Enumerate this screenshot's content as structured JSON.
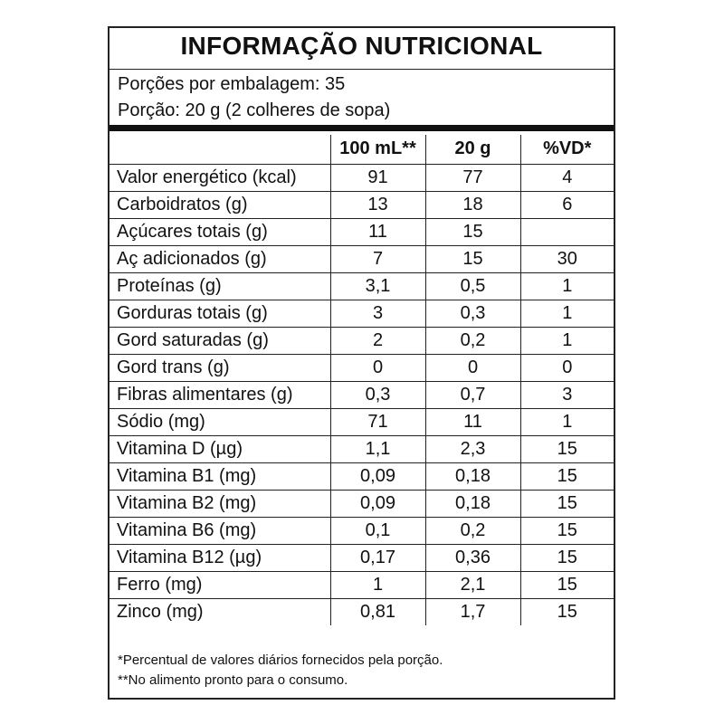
{
  "label": {
    "title": "INFORMAÇÃO NUTRICIONAL",
    "servings_per_package": "Porções por embalagem: 35",
    "serving_size": "Porção: 20 g (2 colheres de sopa)"
  },
  "table": {
    "headers": [
      "",
      "100 mL**",
      "20 g",
      "%VD*"
    ],
    "rows": [
      {
        "nutrient": "Valor energético (kcal)",
        "per_100ml": "91",
        "per_portion": "77",
        "vd": "4",
        "indent": 0
      },
      {
        "nutrient": "Carboidratos (g)",
        "per_100ml": "13",
        "per_portion": "18",
        "vd": "6",
        "indent": 0
      },
      {
        "nutrient": "Açúcares totais (g)",
        "per_100ml": "11",
        "per_portion": "15",
        "vd": "",
        "indent": 1
      },
      {
        "nutrient": "Aç adicionados (g)",
        "per_100ml": "7",
        "per_portion": "15",
        "vd": "30",
        "indent": 2
      },
      {
        "nutrient": "Proteínas (g)",
        "per_100ml": "3,1",
        "per_portion": "0,5",
        "vd": "1",
        "indent": 0
      },
      {
        "nutrient": "Gorduras totais (g)",
        "per_100ml": "3",
        "per_portion": "0,3",
        "vd": "1",
        "indent": 0
      },
      {
        "nutrient": "Gord saturadas (g)",
        "per_100ml": "2",
        "per_portion": "0,2",
        "vd": "1",
        "indent": 1
      },
      {
        "nutrient": "Gord trans (g)",
        "per_100ml": "0",
        "per_portion": "0",
        "vd": "0",
        "indent": 1
      },
      {
        "nutrient": "Fibras alimentares (g)",
        "per_100ml": "0,3",
        "per_portion": "0,7",
        "vd": "3",
        "indent": 0
      },
      {
        "nutrient": "Sódio (mg)",
        "per_100ml": "71",
        "per_portion": "11",
        "vd": "1",
        "indent": 0
      },
      {
        "nutrient": "Vitamina D (µg)",
        "per_100ml": "1,1",
        "per_portion": "2,3",
        "vd": "15",
        "indent": 0
      },
      {
        "nutrient": "Vitamina B1 (mg)",
        "per_100ml": "0,09",
        "per_portion": "0,18",
        "vd": "15",
        "indent": 0
      },
      {
        "nutrient": "Vitamina B2 (mg)",
        "per_100ml": "0,09",
        "per_portion": "0,18",
        "vd": "15",
        "indent": 0
      },
      {
        "nutrient": "Vitamina B6 (mg)",
        "per_100ml": "0,1",
        "per_portion": "0,2",
        "vd": "15",
        "indent": 0
      },
      {
        "nutrient": "Vitamina B12 (µg)",
        "per_100ml": "0,17",
        "per_portion": "0,36",
        "vd": "15",
        "indent": 0
      },
      {
        "nutrient": "Ferro (mg)",
        "per_100ml": "1",
        "per_portion": "2,1",
        "vd": "15",
        "indent": 0
      },
      {
        "nutrient": "Zinco (mg)",
        "per_100ml": "0,81",
        "per_portion": "1,7",
        "vd": "15",
        "indent": 0
      }
    ]
  },
  "footnotes": [
    "*Percentual de valores diários fornecidos pela porção.",
    "**No alimento pronto para o consumo."
  ]
}
